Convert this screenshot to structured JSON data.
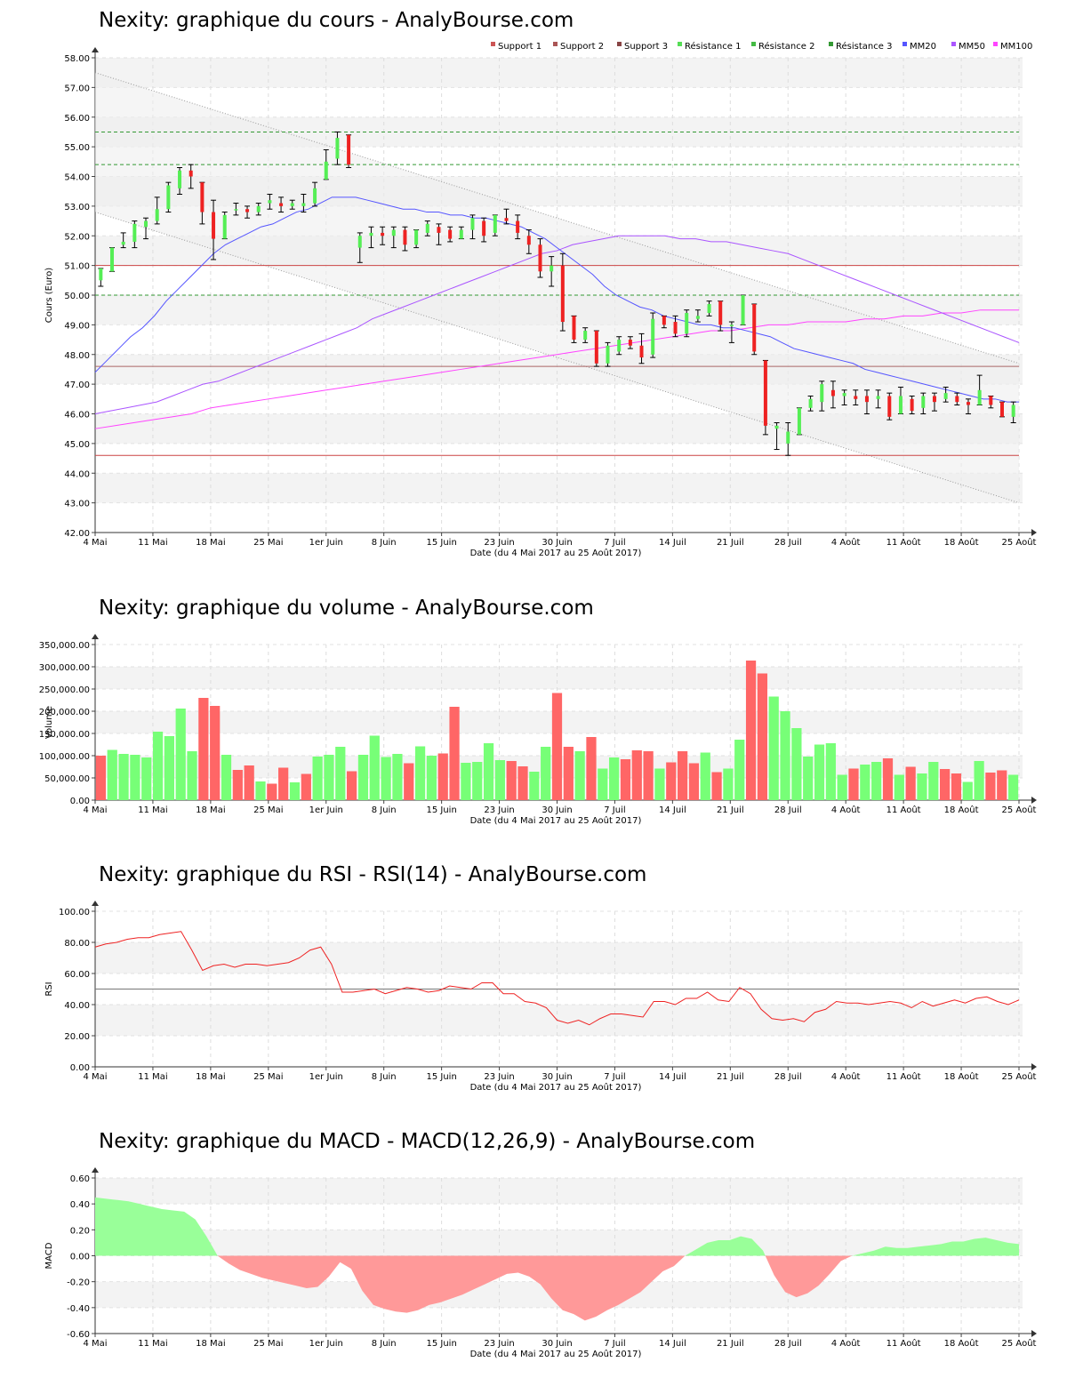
{
  "x_axis": {
    "ticks": [
      "4 Mai",
      "11 Mai",
      "18 Mai",
      "25 Mai",
      "1er Juin",
      "8 Juin",
      "15 Juin",
      "23 Juin",
      "30 Juin",
      "7 Juil",
      "14 Juil",
      "21 Juil",
      "28 Juil",
      "4 Août",
      "11 Août",
      "18 Août",
      "25 Août"
    ],
    "label": "Date (du 4 Mai 2017 au 25 Août 2017)"
  },
  "colors": {
    "up": "#55ee55",
    "down": "#ee2222",
    "vol_up": "#77ff77",
    "vol_down": "#ff6666",
    "macd_pos": "#99ff99",
    "macd_neg": "#ff9999"
  },
  "chart_data": [
    {
      "type": "candlestick",
      "title": "Nexity: graphique du cours - AnalyBourse.com",
      "ylabel": "Cours (Euro)",
      "xlabel": "Date (du 4 Mai 2017 au 25 Août 2017)",
      "ylim": [
        42,
        58
      ],
      "yticks": [
        "42.00",
        "43.00",
        "44.00",
        "45.00",
        "46.00",
        "47.00",
        "48.00",
        "49.00",
        "50.00",
        "51.00",
        "52.00",
        "53.00",
        "54.00",
        "55.00",
        "56.00",
        "57.00",
        "58.00"
      ],
      "legend": [
        "Support 1",
        "Support 2",
        "Support 3",
        "Résistance 1",
        "Résistance 2",
        "Résistance 3",
        "MM20",
        "MM50",
        "MM100"
      ],
      "legend_colors": [
        "#cc5555",
        "#aa5555",
        "#884444",
        "#55dd55",
        "#44bb44",
        "#339933",
        "#5555ff",
        "#aa55ff",
        "#ff44ff"
      ],
      "levels": {
        "support_1": 44.6,
        "support_2": 47.6,
        "resistance_1": 50.0,
        "resistance_2": 54.4,
        "resistance_3": 55.5,
        "other_red": 51.0
      },
      "candles": [
        {
          "o": 50.5,
          "h": 50.9,
          "l": 50.3,
          "c": 50.9
        },
        {
          "o": 50.8,
          "h": 51.6,
          "l": 50.8,
          "c": 51.6
        },
        {
          "o": 51.7,
          "h": 52.1,
          "l": 51.6,
          "c": 51.8
        },
        {
          "o": 51.8,
          "h": 52.5,
          "l": 51.6,
          "c": 52.4
        },
        {
          "o": 52.3,
          "h": 52.6,
          "l": 51.9,
          "c": 52.5
        },
        {
          "o": 52.5,
          "h": 53.3,
          "l": 52.4,
          "c": 52.9
        },
        {
          "o": 52.9,
          "h": 53.8,
          "l": 52.8,
          "c": 53.7
        },
        {
          "o": 53.6,
          "h": 54.3,
          "l": 53.4,
          "c": 54.2
        },
        {
          "o": 54.2,
          "h": 54.4,
          "l": 53.6,
          "c": 54.0
        },
        {
          "o": 53.8,
          "h": 53.8,
          "l": 52.4,
          "c": 52.8
        },
        {
          "o": 52.8,
          "h": 53.2,
          "l": 51.2,
          "c": 51.9
        },
        {
          "o": 51.9,
          "h": 52.8,
          "l": 51.9,
          "c": 52.7
        },
        {
          "o": 52.9,
          "h": 53.1,
          "l": 52.7,
          "c": 52.9
        },
        {
          "o": 52.9,
          "h": 53.0,
          "l": 52.6,
          "c": 52.8
        },
        {
          "o": 52.8,
          "h": 53.1,
          "l": 52.7,
          "c": 53.0
        },
        {
          "o": 53.1,
          "h": 53.4,
          "l": 52.9,
          "c": 53.2
        },
        {
          "o": 53.1,
          "h": 53.3,
          "l": 52.8,
          "c": 53.0
        },
        {
          "o": 53.0,
          "h": 53.2,
          "l": 52.9,
          "c": 53.1
        },
        {
          "o": 53.0,
          "h": 53.4,
          "l": 52.8,
          "c": 53.1
        },
        {
          "o": 53.1,
          "h": 53.8,
          "l": 53.0,
          "c": 53.6
        },
        {
          "o": 53.9,
          "h": 54.9,
          "l": 53.9,
          "c": 54.5
        },
        {
          "o": 54.6,
          "h": 55.5,
          "l": 54.4,
          "c": 55.3
        },
        {
          "o": 55.4,
          "h": 55.4,
          "l": 54.3,
          "c": 54.4
        },
        {
          "o": 51.6,
          "h": 52.1,
          "l": 51.1,
          "c": 52.0
        },
        {
          "o": 52.0,
          "h": 52.3,
          "l": 51.6,
          "c": 52.1
        },
        {
          "o": 52.1,
          "h": 52.3,
          "l": 51.7,
          "c": 52.0
        },
        {
          "o": 52.0,
          "h": 52.3,
          "l": 51.6,
          "c": 52.2
        },
        {
          "o": 52.2,
          "h": 52.3,
          "l": 51.5,
          "c": 51.7
        },
        {
          "o": 51.7,
          "h": 52.2,
          "l": 51.6,
          "c": 52.2
        },
        {
          "o": 52.1,
          "h": 52.5,
          "l": 52.0,
          "c": 52.4
        },
        {
          "o": 52.3,
          "h": 52.4,
          "l": 51.7,
          "c": 52.1
        },
        {
          "o": 52.2,
          "h": 52.3,
          "l": 51.8,
          "c": 51.9
        },
        {
          "o": 51.9,
          "h": 52.3,
          "l": 51.9,
          "c": 52.2
        },
        {
          "o": 52.2,
          "h": 52.7,
          "l": 51.9,
          "c": 52.6
        },
        {
          "o": 52.5,
          "h": 52.6,
          "l": 51.8,
          "c": 52.0
        },
        {
          "o": 52.1,
          "h": 52.7,
          "l": 52.0,
          "c": 52.7
        },
        {
          "o": 52.6,
          "h": 52.9,
          "l": 52.4,
          "c": 52.5
        },
        {
          "o": 52.5,
          "h": 52.7,
          "l": 51.9,
          "c": 52.1
        },
        {
          "o": 52.0,
          "h": 52.2,
          "l": 51.4,
          "c": 51.7
        },
        {
          "o": 51.7,
          "h": 51.9,
          "l": 50.6,
          "c": 50.8
        },
        {
          "o": 50.8,
          "h": 51.3,
          "l": 50.3,
          "c": 51.0
        },
        {
          "o": 51.0,
          "h": 51.4,
          "l": 48.8,
          "c": 49.1
        },
        {
          "o": 49.3,
          "h": 49.3,
          "l": 48.4,
          "c": 48.5
        },
        {
          "o": 48.5,
          "h": 48.9,
          "l": 48.4,
          "c": 48.8
        },
        {
          "o": 48.8,
          "h": 48.8,
          "l": 47.6,
          "c": 47.7
        },
        {
          "o": 47.7,
          "h": 48.4,
          "l": 47.6,
          "c": 48.3
        },
        {
          "o": 48.1,
          "h": 48.6,
          "l": 48.0,
          "c": 48.5
        },
        {
          "o": 48.5,
          "h": 48.6,
          "l": 48.2,
          "c": 48.3
        },
        {
          "o": 48.3,
          "h": 48.7,
          "l": 47.7,
          "c": 47.9
        },
        {
          "o": 48.0,
          "h": 49.4,
          "l": 47.9,
          "c": 49.2
        },
        {
          "o": 49.3,
          "h": 49.3,
          "l": 48.9,
          "c": 49.0
        },
        {
          "o": 49.1,
          "h": 49.3,
          "l": 48.6,
          "c": 48.7
        },
        {
          "o": 48.7,
          "h": 49.5,
          "l": 48.6,
          "c": 49.4
        },
        {
          "o": 49.2,
          "h": 49.5,
          "l": 49.1,
          "c": 49.3
        },
        {
          "o": 49.4,
          "h": 49.8,
          "l": 49.3,
          "c": 49.7
        },
        {
          "o": 49.8,
          "h": 49.8,
          "l": 48.8,
          "c": 49.0
        },
        {
          "o": 49.0,
          "h": 49.1,
          "l": 48.4,
          "c": 49.0
        },
        {
          "o": 49.0,
          "h": 50.0,
          "l": 49.0,
          "c": 50.0
        },
        {
          "o": 49.7,
          "h": 49.7,
          "l": 48.0,
          "c": 48.1
        },
        {
          "o": 47.8,
          "h": 47.8,
          "l": 45.3,
          "c": 45.6
        },
        {
          "o": 45.5,
          "h": 45.7,
          "l": 44.8,
          "c": 45.6
        },
        {
          "o": 45.0,
          "h": 45.7,
          "l": 44.6,
          "c": 45.4
        },
        {
          "o": 45.3,
          "h": 46.2,
          "l": 45.3,
          "c": 46.2
        },
        {
          "o": 46.2,
          "h": 46.6,
          "l": 46.1,
          "c": 46.5
        },
        {
          "o": 46.4,
          "h": 47.1,
          "l": 46.1,
          "c": 47.0
        },
        {
          "o": 46.8,
          "h": 47.1,
          "l": 46.2,
          "c": 46.6
        },
        {
          "o": 46.6,
          "h": 46.8,
          "l": 46.3,
          "c": 46.7
        },
        {
          "o": 46.6,
          "h": 46.8,
          "l": 46.3,
          "c": 46.5
        },
        {
          "o": 46.6,
          "h": 46.8,
          "l": 46.0,
          "c": 46.4
        },
        {
          "o": 46.5,
          "h": 46.8,
          "l": 46.2,
          "c": 46.6
        },
        {
          "o": 46.6,
          "h": 46.7,
          "l": 45.8,
          "c": 45.9
        },
        {
          "o": 46.0,
          "h": 46.9,
          "l": 46.0,
          "c": 46.6
        },
        {
          "o": 46.5,
          "h": 46.6,
          "l": 46.0,
          "c": 46.1
        },
        {
          "o": 46.2,
          "h": 46.7,
          "l": 46.0,
          "c": 46.6
        },
        {
          "o": 46.6,
          "h": 46.7,
          "l": 46.1,
          "c": 46.4
        },
        {
          "o": 46.5,
          "h": 46.9,
          "l": 46.4,
          "c": 46.7
        },
        {
          "o": 46.6,
          "h": 46.7,
          "l": 46.3,
          "c": 46.4
        },
        {
          "o": 46.4,
          "h": 46.5,
          "l": 46.0,
          "c": 46.3
        },
        {
          "o": 46.3,
          "h": 47.3,
          "l": 46.3,
          "c": 46.8
        },
        {
          "o": 46.6,
          "h": 46.6,
          "l": 46.2,
          "c": 46.3
        },
        {
          "o": 46.4,
          "h": 46.4,
          "l": 45.9,
          "c": 45.9
        },
        {
          "o": 45.9,
          "h": 46.4,
          "l": 45.7,
          "c": 46.3
        }
      ],
      "mm20": [
        47.4,
        47.8,
        48.2,
        48.6,
        48.9,
        49.3,
        49.8,
        50.2,
        50.6,
        51.0,
        51.4,
        51.7,
        51.9,
        52.1,
        52.3,
        52.4,
        52.6,
        52.8,
        52.9,
        53.1,
        53.3,
        53.3,
        53.3,
        53.2,
        53.1,
        53.0,
        52.9,
        52.9,
        52.8,
        52.8,
        52.7,
        52.7,
        52.6,
        52.6,
        52.5,
        52.4,
        52.3,
        52.1,
        51.9,
        51.6,
        51.3,
        51.0,
        50.7,
        50.3,
        50.0,
        49.8,
        49.6,
        49.5,
        49.3,
        49.2,
        49.1,
        49.0,
        49.0,
        48.9,
        48.9,
        48.8,
        48.7,
        48.6,
        48.4,
        48.2,
        48.1,
        48.0,
        47.9,
        47.8,
        47.7,
        47.5,
        47.4,
        47.3,
        47.2,
        47.1,
        47.0,
        46.9,
        46.8,
        46.7,
        46.6,
        46.5,
        46.5,
        46.4,
        46.4
      ],
      "mm50": [
        46.0,
        46.1,
        46.2,
        46.3,
        46.4,
        46.6,
        46.8,
        47.0,
        47.1,
        47.3,
        47.5,
        47.7,
        47.9,
        48.1,
        48.3,
        48.5,
        48.7,
        48.9,
        49.2,
        49.4,
        49.6,
        49.8,
        50.0,
        50.2,
        50.4,
        50.6,
        50.8,
        51.0,
        51.2,
        51.4,
        51.5,
        51.7,
        51.8,
        51.9,
        52.0,
        52.0,
        52.0,
        52.0,
        51.9,
        51.9,
        51.8,
        51.8,
        51.7,
        51.6,
        51.5,
        51.4,
        51.2,
        51.0,
        50.8,
        50.6,
        50.4,
        50.2,
        50.0,
        49.8,
        49.6,
        49.4,
        49.2,
        49.0,
        48.8,
        48.6,
        48.4
      ],
      "mm100": [
        45.5,
        45.6,
        45.7,
        45.8,
        45.9,
        46.0,
        46.2,
        46.3,
        46.4,
        46.5,
        46.6,
        46.7,
        46.8,
        46.9,
        47.0,
        47.1,
        47.2,
        47.3,
        47.4,
        47.5,
        47.6,
        47.7,
        47.8,
        47.9,
        48.0,
        48.1,
        48.2,
        48.3,
        48.4,
        48.5,
        48.6,
        48.7,
        48.8,
        48.8,
        48.9,
        49.0,
        49.0,
        49.1,
        49.1,
        49.1,
        49.2,
        49.2,
        49.3,
        49.3,
        49.4,
        49.4,
        49.5,
        49.5,
        49.5
      ]
    },
    {
      "type": "bar",
      "title": "Nexity: graphique du volume - AnalyBourse.com",
      "ylabel": "Volume",
      "xlabel": "Date (du 4 Mai 2017 au 25 Août 2017)",
      "ylim": [
        0,
        350000
      ],
      "yticks": [
        "0.00",
        "50,000.00",
        "100,000.00",
        "150,000.00",
        "200,000.00",
        "250,000.00",
        "300,000.00",
        "350,000.00"
      ],
      "values": [
        100000,
        113000,
        104000,
        102000,
        96000,
        154000,
        144000,
        206000,
        110000,
        230000,
        212000,
        102000,
        68000,
        78000,
        42000,
        37000,
        73000,
        40000,
        59000,
        98000,
        102000,
        120000,
        65000,
        102000,
        145000,
        97000,
        104000,
        83000,
        121000,
        100000,
        105000,
        210000,
        84000,
        86000,
        128000,
        90000,
        88000,
        76000,
        64000,
        120000,
        241000,
        120000,
        110000,
        142000,
        71000,
        96000,
        92000,
        112000,
        110000,
        71000,
        85000,
        110000,
        83000,
        107000,
        63000,
        71000,
        136000,
        314000,
        285000,
        233000,
        200000,
        162000,
        98000,
        125000,
        128000,
        57000,
        71000,
        80000,
        86000,
        94000,
        57000,
        75000,
        60000,
        86000,
        70000,
        60000,
        41000,
        88000,
        62000,
        67000,
        57000
      ],
      "up": [
        0,
        1,
        1,
        1,
        1,
        1,
        1,
        1,
        1,
        0,
        0,
        1,
        0,
        0,
        1,
        0,
        0,
        1,
        0,
        1,
        1,
        1,
        0,
        1,
        1,
        1,
        1,
        0,
        1,
        1,
        0,
        0,
        1,
        1,
        1,
        1,
        0,
        0,
        1,
        1,
        0,
        0,
        1,
        0,
        1,
        1,
        0,
        0,
        0,
        1,
        0,
        0,
        0,
        1,
        0,
        1,
        1,
        0,
        0,
        1,
        1,
        1,
        1,
        1,
        1,
        1,
        0,
        1,
        1,
        0,
        1,
        0,
        1,
        1,
        0,
        0,
        1,
        1,
        0,
        0,
        1
      ]
    },
    {
      "type": "line",
      "title": "Nexity: graphique du RSI - RSI(14) - AnalyBourse.com",
      "ylabel": "RSI",
      "xlabel": "Date (du 4 Mai 2017 au 25 Août 2017)",
      "ylim": [
        0,
        100
      ],
      "yticks": [
        "0.00",
        "20.00",
        "40.00",
        "60.00",
        "80.00",
        "100.00"
      ],
      "reference": 50,
      "values": [
        77,
        79,
        80,
        82,
        83,
        83,
        85,
        86,
        87,
        75,
        62,
        65,
        66,
        64,
        66,
        66,
        65,
        66,
        67,
        70,
        75,
        77,
        66,
        48,
        48,
        49,
        50,
        47,
        49,
        51,
        50,
        48,
        49,
        52,
        51,
        50,
        54,
        54,
        47,
        47,
        42,
        41,
        38,
        30,
        28,
        30,
        27,
        31,
        34,
        34,
        33,
        32,
        42,
        42,
        40,
        44,
        44,
        48,
        43,
        42,
        51,
        47,
        37,
        31,
        30,
        31,
        29,
        35,
        37,
        42,
        41,
        41,
        40,
        41,
        42,
        41,
        38,
        42,
        39,
        41,
        43,
        41,
        44,
        45,
        42,
        40,
        43
      ]
    },
    {
      "type": "area",
      "title": "Nexity: graphique du MACD - MACD(12,26,9) - AnalyBourse.com",
      "ylabel": "MACD",
      "xlabel": "Date (du 4 Mai 2017 au 25 Août 2017)",
      "ylim": [
        -0.6,
        0.6
      ],
      "yticks": [
        "-0.60",
        "-0.40",
        "-0.20",
        "0.00",
        "0.20",
        "0.40",
        "0.60"
      ],
      "values": [
        0.45,
        0.44,
        0.43,
        0.42,
        0.4,
        0.38,
        0.36,
        0.35,
        0.34,
        0.28,
        0.15,
        0.0,
        -0.06,
        -0.11,
        -0.14,
        -0.17,
        -0.19,
        -0.21,
        -0.23,
        -0.25,
        -0.24,
        -0.16,
        -0.05,
        -0.1,
        -0.27,
        -0.38,
        -0.41,
        -0.43,
        -0.44,
        -0.42,
        -0.38,
        -0.36,
        -0.33,
        -0.3,
        -0.26,
        -0.22,
        -0.18,
        -0.14,
        -0.13,
        -0.16,
        -0.22,
        -0.33,
        -0.42,
        -0.45,
        -0.5,
        -0.47,
        -0.42,
        -0.38,
        -0.33,
        -0.28,
        -0.2,
        -0.12,
        -0.08,
        0.0,
        0.05,
        0.1,
        0.12,
        0.12,
        0.15,
        0.13,
        0.04,
        -0.15,
        -0.28,
        -0.32,
        -0.29,
        -0.23,
        -0.14,
        -0.04,
        0.0,
        0.02,
        0.04,
        0.07,
        0.06,
        0.06,
        0.07,
        0.08,
        0.09,
        0.11,
        0.11,
        0.13,
        0.14,
        0.12,
        0.1,
        0.09
      ]
    }
  ]
}
